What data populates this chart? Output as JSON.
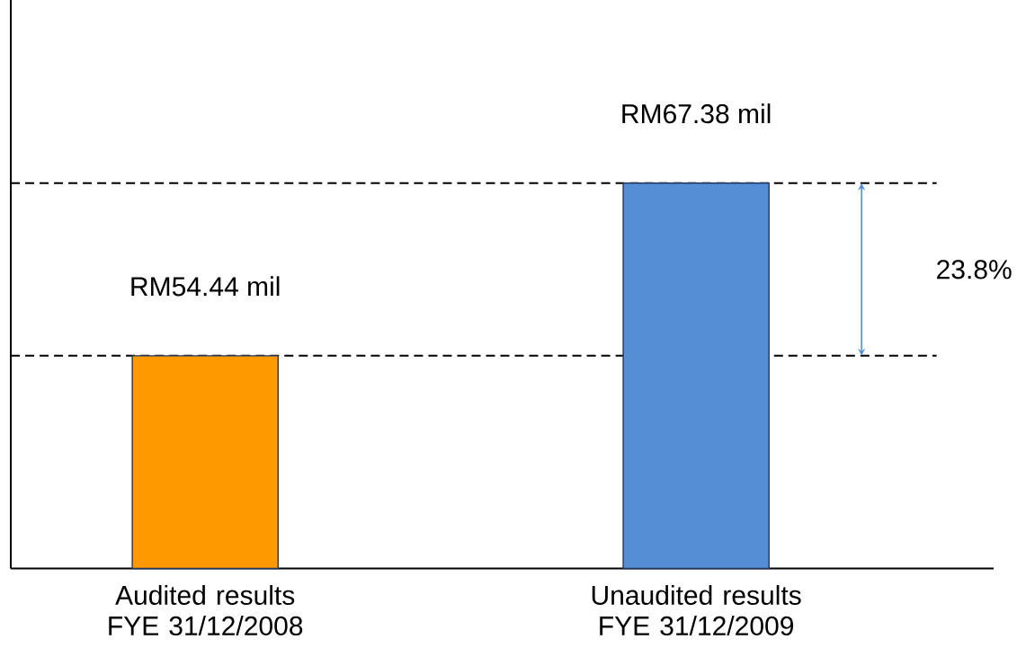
{
  "chart_data": {
    "type": "bar",
    "ylim": [
      38.5,
      81.1
    ],
    "categories": [
      "Audited results FYE 31/12/2008",
      "Unaudited results FYE 31/12/2009"
    ],
    "values": [
      54.44,
      67.38
    ],
    "colors": [
      "#ff9900",
      "#558ed5"
    ],
    "value_labels": [
      "RM54.44 mil",
      "RM67.38 mil"
    ],
    "ref_lines": [
      {
        "axis": "y",
        "value": 54.44,
        "color": "#000000",
        "line_style": "dashed"
      },
      {
        "axis": "y",
        "value": 67.38,
        "color": "#000000",
        "line_style": "dashed"
      }
    ],
    "annotations": [
      "23.8%"
    ]
  }
}
